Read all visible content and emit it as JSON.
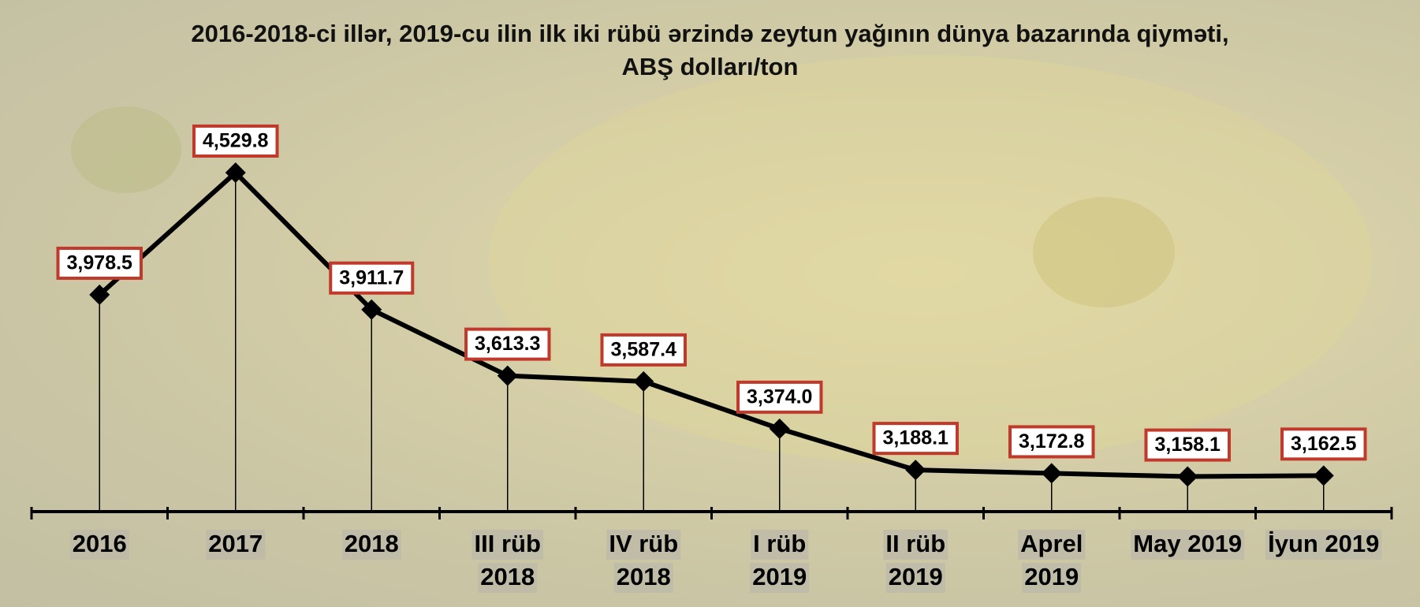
{
  "chart_data": {
    "type": "line",
    "title": "2016-2018-ci illər, 2019-cu ilin ilk iki rübü ərzində zeytun yağının dünya bazarında qiyməti, ABŞ dolları/ton",
    "categories": [
      [
        "2016"
      ],
      [
        "2017"
      ],
      [
        "2018"
      ],
      [
        "III rüb",
        "2018"
      ],
      [
        "IV rüb",
        "2018"
      ],
      [
        "I rüb",
        "2019"
      ],
      [
        "II rüb",
        "2019"
      ],
      [
        "Aprel",
        "2019"
      ],
      [
        "May 2019"
      ],
      [
        "İyun 2019"
      ]
    ],
    "values": [
      3978.5,
      4529.8,
      3911.7,
      3613.3,
      3587.4,
      3374.0,
      3188.1,
      3172.8,
      3158.1,
      3162.5
    ],
    "value_labels": [
      "3,978.5",
      "4,529.8",
      "3,911.7",
      "3,613.3",
      "3,587.4",
      "3,374.0",
      "3,188.1",
      "3,172.8",
      "3,158.1",
      "3,162.5"
    ],
    "color": "#000000",
    "label_border_color": "#c0392b",
    "ylim": [
      3000,
      4800
    ]
  }
}
